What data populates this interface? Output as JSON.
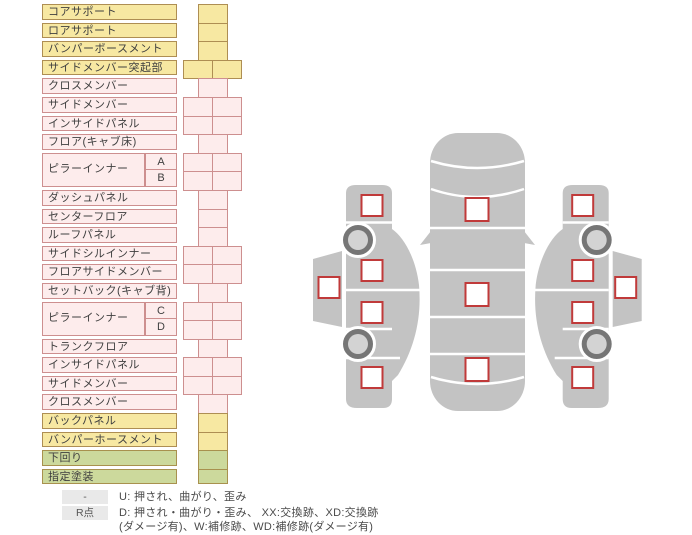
{
  "table": {
    "rows": [
      {
        "label": "コアサポート",
        "color": "yellow",
        "cells": 1
      },
      {
        "label": "ロアサポート",
        "color": "yellow",
        "cells": 1
      },
      {
        "label": "バンパーボースメント",
        "color": "yellow",
        "cells": 1
      },
      {
        "label": "サイドメンバー突起部",
        "color": "yellow",
        "cells": 2
      },
      {
        "label": "クロスメンバー",
        "color": "pink",
        "cells": 1
      },
      {
        "label": "サイドメンバー",
        "color": "pink",
        "cells": 2
      },
      {
        "label": "インサイドパネル",
        "color": "pink",
        "cells": 2
      },
      {
        "label": "フロア(キャブ床)",
        "color": "pink",
        "cells": 1
      },
      {
        "label": "ピラーインナー",
        "color": "pink",
        "group": [
          {
            "sub": "A",
            "cells": 2
          },
          {
            "sub": "B",
            "cells": 2
          }
        ]
      },
      {
        "label": "ダッシュパネル",
        "color": "pink",
        "cells": 1
      },
      {
        "label": "センターフロア",
        "color": "pink",
        "cells": 1
      },
      {
        "label": "ルーフパネル",
        "color": "pink",
        "cells": 1
      },
      {
        "label": "サイドシルインナー",
        "color": "pink",
        "cells": 2
      },
      {
        "label": "フロアサイドメンバー",
        "color": "pink",
        "cells": 2
      },
      {
        "label": "セットバック(キャブ背)",
        "color": "pink",
        "cells": 1
      },
      {
        "label": "ピラーインナー",
        "color": "pink",
        "group": [
          {
            "sub": "C",
            "cells": 2
          },
          {
            "sub": "D",
            "cells": 2
          }
        ]
      },
      {
        "label": "トランクフロア",
        "color": "pink",
        "cells": 1
      },
      {
        "label": "インサイドパネル",
        "color": "pink",
        "cells": 2
      },
      {
        "label": "サイドメンバー",
        "color": "pink",
        "cells": 2
      },
      {
        "label": "クロスメンバー",
        "color": "pink",
        "cells": 1
      },
      {
        "label": "バックパネル",
        "color": "yellow",
        "cells": 1
      },
      {
        "label": "バンパーホースメント",
        "color": "yellow",
        "cells": 1
      },
      {
        "label": "下回り",
        "color": "green",
        "cells": 1
      },
      {
        "label": "指定塗装",
        "color": "green",
        "cells": 1
      }
    ],
    "colors": {
      "yellow": "#f7e8a2",
      "pink": "#fdecec",
      "green": "#ccd99c"
    }
  },
  "legend": {
    "items": [
      {
        "key": "-",
        "lines": [
          "U: 押され、曲がり、歪み"
        ]
      },
      {
        "key": "R点",
        "lines": [
          "D: 押され・曲がり・歪み、 XX:交換跡、XD:交換跡",
          "(ダメージ有)、W:補修跡、WD:補修跡(ダメージ有)"
        ]
      }
    ]
  },
  "diagram": {
    "views": [
      "left-side-view",
      "top-view",
      "right-side-view"
    ],
    "left_side_markers": 5,
    "top_view_markers": 3,
    "right_side_markers": 5,
    "wheels": 4,
    "body_color": "#c3c3c3",
    "wheel_ring_color": "#767676",
    "wheel_hub_color": "#d3d3d3",
    "marker_border_color": "#c03a3a"
  }
}
